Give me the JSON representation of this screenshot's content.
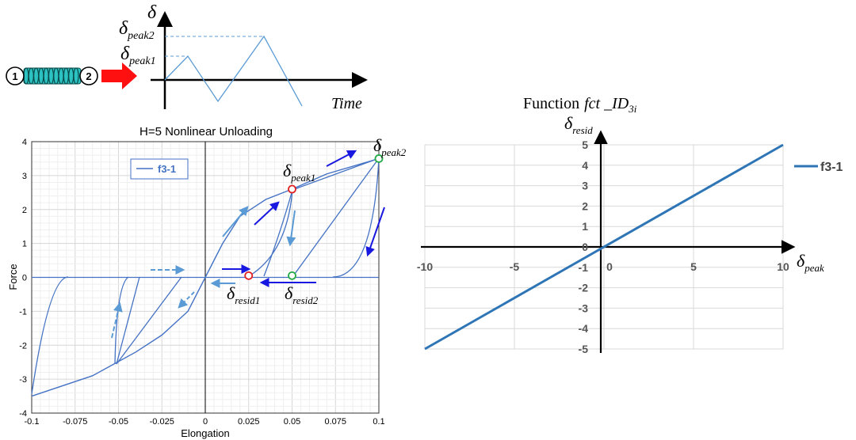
{
  "timeline": {
    "ylabel": "δ",
    "xlabel": "Time",
    "peak1_sym": "δ",
    "peak1_sub": "peak1",
    "peak2_sym": "δ",
    "peak2_sub": "peak2",
    "node1": "1",
    "node2": "2"
  },
  "annotations": {
    "peak1_sym": "δ",
    "peak1_sub": "peak1",
    "peak2_sym": "δ",
    "peak2_sub": "peak2",
    "resid1_sym": "δ",
    "resid1_sub": "resid1",
    "resid2_sym": "δ",
    "resid2_sub": "resid2"
  },
  "chart_data": [
    {
      "type": "line",
      "title": "H=5 Nonlinear Unloading",
      "xlabel": "Elongation",
      "ylabel": "Force",
      "xlim": [
        -0.1,
        0.1
      ],
      "ylim": [
        -4,
        4
      ],
      "xticks": [
        "-0.1",
        "-0.075",
        "-0.05",
        "-0.025",
        "0",
        "0.025",
        "0.05",
        "0.075",
        "0.1"
      ],
      "yticks": [
        "-4",
        "-3",
        "-2",
        "-1",
        "0",
        "1",
        "2",
        "3",
        "4"
      ],
      "grid": true,
      "legend": "top-left",
      "series": [
        {
          "name": "f3-1",
          "color": "#4472c4",
          "x": [
            -0.1,
            -0.065,
            -0.04,
            -0.025,
            -0.01,
            0,
            0.01,
            0.02,
            0.035,
            0.05,
            0.07,
            0.1
          ],
          "y": [
            -3.5,
            -2.9,
            -2.2,
            -1.7,
            -1.0,
            0,
            1.0,
            1.8,
            2.3,
            2.6,
            3.05,
            3.5
          ]
        }
      ],
      "markers": [
        {
          "x": 0.05,
          "y": 2.6,
          "color": "#e02020"
        },
        {
          "x": 0.025,
          "y": 0.05,
          "color": "#e02020"
        },
        {
          "x": 0.1,
          "y": 3.5,
          "color": "#22aa44"
        },
        {
          "x": 0.05,
          "y": 0.05,
          "color": "#22aa44"
        }
      ]
    },
    {
      "type": "line",
      "title": "Function fct _ID3i",
      "title_prefix": "Function",
      "title_fn": "fct _ID",
      "title_sub": "3i",
      "xlabel_sym": "δ",
      "xlabel_sub": "peak",
      "ylabel_sym": "δ",
      "ylabel_sub": "resid",
      "xlim": [
        -10,
        10
      ],
      "ylim": [
        -5,
        5
      ],
      "xticks": [
        "-10",
        "-5",
        "0",
        "5",
        "10"
      ],
      "yticks": [
        "5",
        "4",
        "3",
        "2",
        "1",
        "0",
        "-1",
        "-2",
        "-3",
        "-4",
        "-5"
      ],
      "grid": true,
      "legend": "right",
      "series": [
        {
          "name": "f3-1",
          "color": "#2e75b6",
          "x": [
            -10,
            10
          ],
          "y": [
            -5,
            5
          ]
        }
      ]
    }
  ]
}
